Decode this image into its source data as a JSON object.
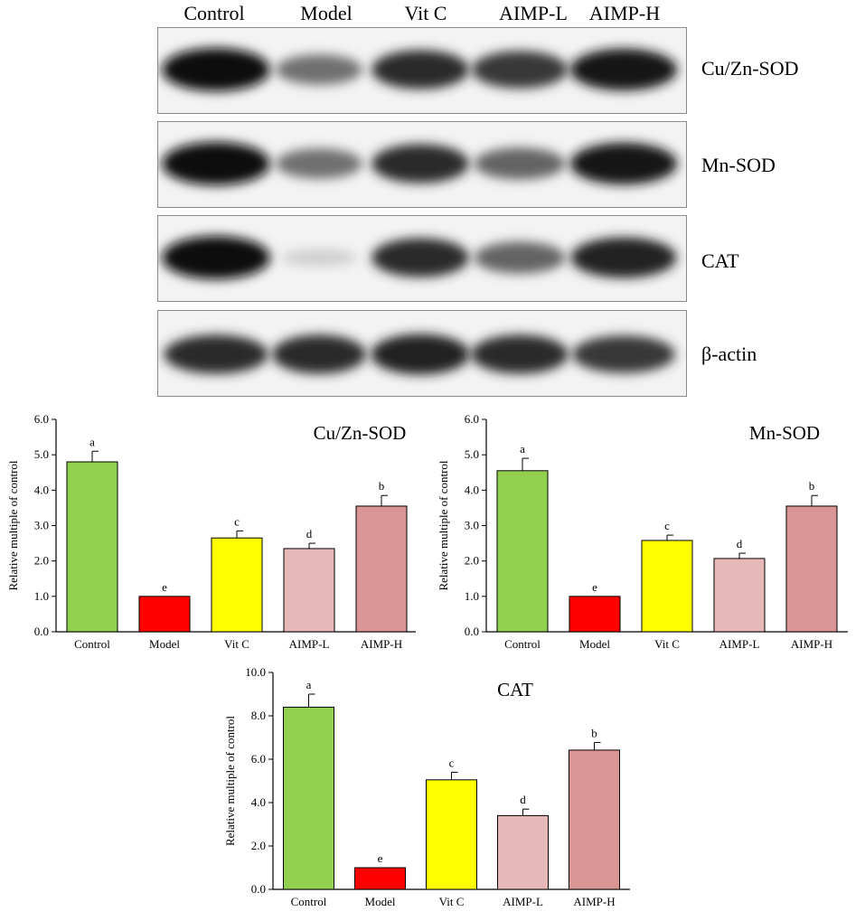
{
  "blot": {
    "lanes": [
      "Control",
      "Model",
      "Vit C",
      "AIMP-L",
      "AIMP-H"
    ],
    "proteins": [
      {
        "name": "Cu/Zn-SOD",
        "intensity": [
          1.0,
          0.55,
          0.85,
          0.8,
          0.95
        ]
      },
      {
        "name": "Mn-SOD",
        "intensity": [
          1.0,
          0.55,
          0.85,
          0.6,
          0.95
        ]
      },
      {
        "name": "CAT",
        "intensity": [
          1.0,
          0.12,
          0.85,
          0.6,
          0.9
        ]
      },
      {
        "name": "β-actin",
        "intensity": [
          0.85,
          0.85,
          0.9,
          0.85,
          0.8
        ]
      }
    ]
  },
  "colors": {
    "Control": "#92d050",
    "Model": "#ff0000",
    "Vit C": "#ffff00",
    "AIMP-L": "#e6b9b8",
    "AIMP-H": "#d99694"
  },
  "chart_data": [
    {
      "type": "bar",
      "title": "Cu/Zn-SOD",
      "ylabel": "Relative multiple of control",
      "categories": [
        "Control",
        "Model",
        "Vit C",
        "AIMP-L",
        "AIMP-H"
      ],
      "values": [
        4.8,
        1.0,
        2.65,
        2.35,
        3.55
      ],
      "errors": [
        0.3,
        0.0,
        0.2,
        0.15,
        0.3
      ],
      "letters": [
        "a",
        "e",
        "c",
        "d",
        "b"
      ],
      "ylim": [
        0,
        6
      ],
      "yticks": [
        "0.0",
        "1.0",
        "2.0",
        "3.0",
        "4.0",
        "5.0",
        "6.0"
      ],
      "grid": false
    },
    {
      "type": "bar",
      "title": "Mn-SOD",
      "ylabel": "Relative multiple of control",
      "categories": [
        "Control",
        "Model",
        "Vit C",
        "AIMP-L",
        "AIMP-H"
      ],
      "values": [
        4.55,
        1.0,
        2.58,
        2.07,
        3.55
      ],
      "errors": [
        0.35,
        0.0,
        0.15,
        0.15,
        0.3
      ],
      "letters": [
        "a",
        "e",
        "c",
        "d",
        "b"
      ],
      "ylim": [
        0,
        6
      ],
      "yticks": [
        "0.0",
        "1.0",
        "2.0",
        "3.0",
        "4.0",
        "5.0",
        "6.0"
      ],
      "grid": false
    },
    {
      "type": "bar",
      "title": "CAT",
      "ylabel": "Relative multiple of control",
      "categories": [
        "Control",
        "Model",
        "Vit C",
        "AIMP-L",
        "AIMP-H"
      ],
      "values": [
        8.4,
        1.0,
        5.05,
        3.4,
        6.42
      ],
      "errors": [
        0.6,
        0.0,
        0.35,
        0.3,
        0.35
      ],
      "letters": [
        "a",
        "e",
        "c",
        "d",
        "b"
      ],
      "ylim": [
        0,
        10
      ],
      "yticks": [
        "0.0",
        "2.0",
        "4.0",
        "6.0",
        "8.0",
        "10.0"
      ],
      "grid": false
    }
  ]
}
